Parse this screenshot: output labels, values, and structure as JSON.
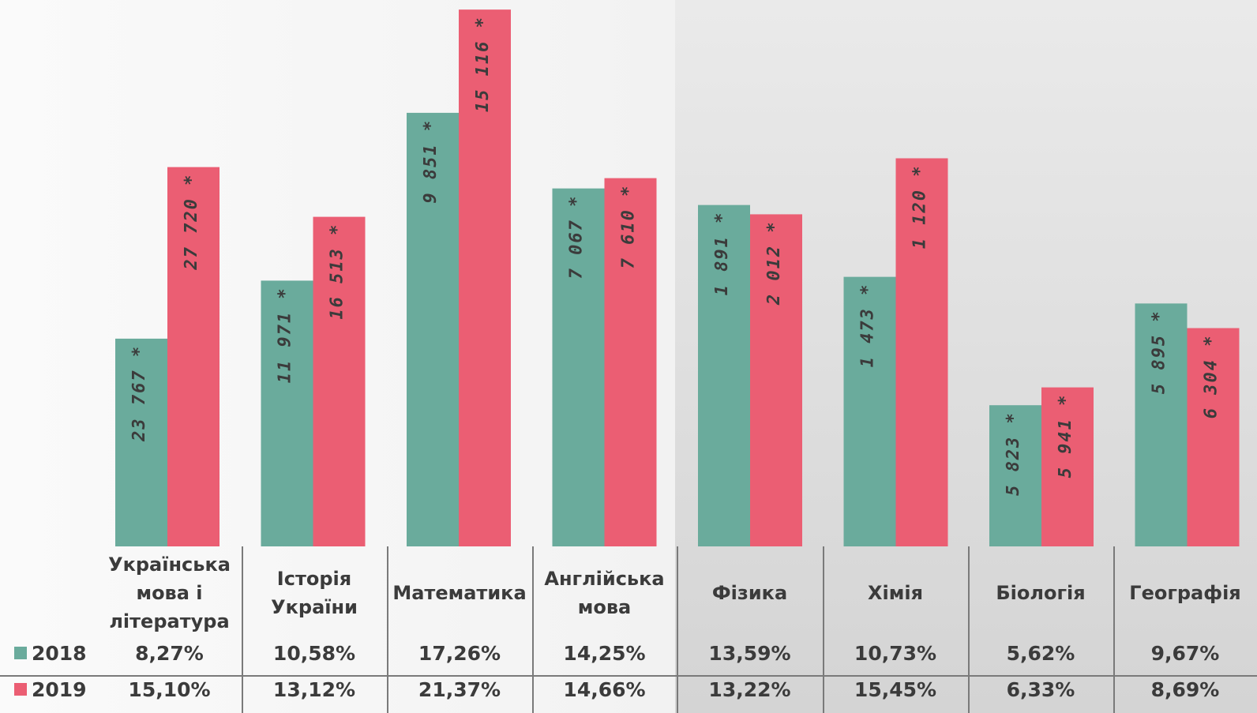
{
  "chart_data": {
    "type": "bar",
    "categories": [
      "Українська\nмова і\nлітература",
      "Історія\nУкраїни",
      "Математика",
      "Англійська\nмова",
      "Фізика",
      "Хімія",
      "Біологія",
      "Географія"
    ],
    "series": [
      {
        "name": "2018",
        "color": "#6aab9c",
        "bar_labels": [
          "23 767 *",
          "11 971 *",
          "9 851 *",
          "7 067 *",
          "1 891 *",
          "1 473 *",
          "5 823 *",
          "5 895 *"
        ],
        "percent_labels": [
          "8,27%",
          "10,58%",
          "17,26%",
          "14,25%",
          "13,59%",
          "10,73%",
          "5,62%",
          "9,67%"
        ],
        "values": [
          8.27,
          10.58,
          17.26,
          14.25,
          13.59,
          10.73,
          5.62,
          9.67
        ]
      },
      {
        "name": "2019",
        "color": "#eb5e73",
        "bar_labels": [
          "27 720 *",
          "16 513 *",
          "15 116 *",
          "7 610 *",
          "2 012 *",
          "1 120 *",
          "5 941 *",
          "6 304 *"
        ],
        "percent_labels": [
          "15,10%",
          "13,12%",
          "21,37%",
          "14,66%",
          "13,22%",
          "15,45%",
          "6,33%",
          "8,69%"
        ],
        "values": [
          15.1,
          13.12,
          21.37,
          14.66,
          13.22,
          15.45,
          6.33,
          8.69
        ]
      }
    ],
    "ylim": [
      0,
      21.5
    ],
    "grid": false,
    "legend": "bottom-left (data table)"
  }
}
